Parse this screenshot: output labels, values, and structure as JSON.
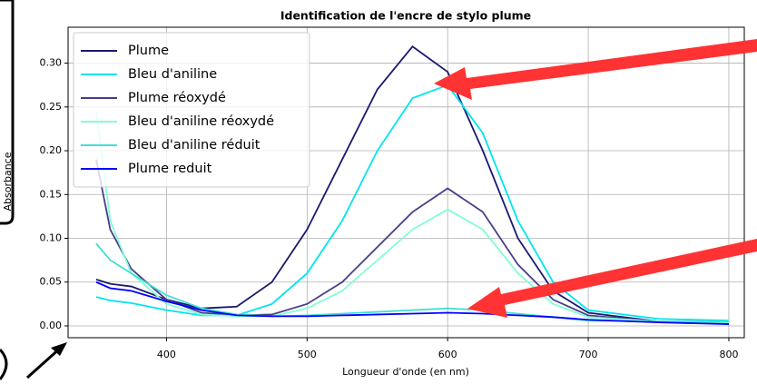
{
  "chart_data": {
    "type": "line",
    "title": "Identification de l'encre de stylo plume",
    "x_label": "Longueur d'onde (en nm)",
    "y_label": "Absorbance",
    "x": [
      350,
      360,
      375,
      400,
      425,
      450,
      475,
      500,
      525,
      550,
      575,
      600,
      625,
      650,
      675,
      700,
      750,
      800
    ],
    "series": [
      {
        "name": "Plume",
        "color": "#191970",
        "values": [
          0.053,
          0.048,
          0.045,
          0.03,
          0.02,
          0.022,
          0.05,
          0.11,
          0.19,
          0.27,
          0.319,
          0.29,
          0.2,
          0.1,
          0.04,
          0.015,
          0.005,
          0.003
        ]
      },
      {
        "name": "Bleu d'aniline",
        "color": "#00e5ee",
        "values": [
          0.033,
          0.029,
          0.026,
          0.018,
          0.012,
          0.012,
          0.025,
          0.06,
          0.12,
          0.2,
          0.26,
          0.275,
          0.22,
          0.12,
          0.05,
          0.018,
          0.008,
          0.006
        ]
      },
      {
        "name": "Plume réoxydé",
        "color": "#483d8b",
        "values": [
          0.19,
          0.11,
          0.065,
          0.03,
          0.015,
          0.012,
          0.013,
          0.025,
          0.05,
          0.09,
          0.13,
          0.157,
          0.13,
          0.07,
          0.03,
          0.012,
          0.005,
          0.003
        ]
      },
      {
        "name": "Bleu d'aniline réoxydé",
        "color": "#7fffd4",
        "values": [
          0.245,
          0.12,
          0.06,
          0.025,
          0.013,
          0.011,
          0.011,
          0.02,
          0.04,
          0.075,
          0.11,
          0.133,
          0.11,
          0.06,
          0.025,
          0.01,
          0.005,
          0.004
        ]
      },
      {
        "name": "Bleu d'aniline réduit",
        "color": "#40e0d0",
        "values": [
          0.094,
          0.075,
          0.06,
          0.035,
          0.02,
          0.013,
          0.011,
          0.012,
          0.014,
          0.016,
          0.018,
          0.02,
          0.018,
          0.014,
          0.01,
          0.006,
          0.005,
          0.005
        ]
      },
      {
        "name": "Plume reduit",
        "color": "#0000ff",
        "values": [
          0.05,
          0.043,
          0.04,
          0.028,
          0.018,
          0.012,
          0.011,
          0.011,
          0.012,
          0.013,
          0.014,
          0.015,
          0.014,
          0.012,
          0.01,
          0.007,
          0.004,
          0.002
        ]
      }
    ],
    "xlim": [
      330,
      811
    ],
    "ylim": [
      -0.0135,
      0.341
    ],
    "xticks": [
      400,
      500,
      600,
      700,
      800
    ],
    "yticks": [
      {
        "value": 0,
        "label": "0.00"
      },
      0.05,
      {
        "value": 0.1,
        "label": "0.10"
      },
      0.15,
      {
        "value": 0.2,
        "label": "0.20"
      },
      0.25,
      {
        "value": 0.3,
        "label": "0.30"
      }
    ],
    "grid": true,
    "legend": "upper left"
  }
}
